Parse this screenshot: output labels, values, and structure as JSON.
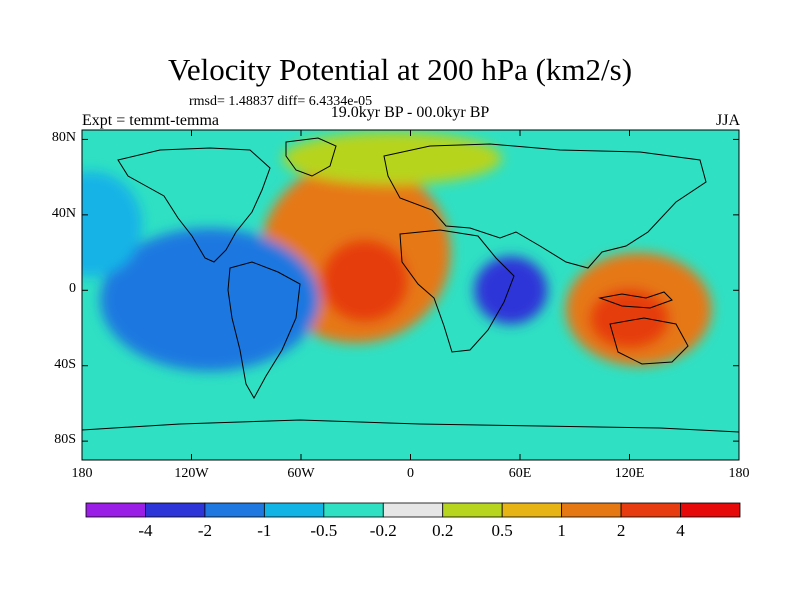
{
  "header": {
    "title": "Velocity Potential at 200 hPa (km2/s)",
    "stats": "rmsd= 1.48837  diff= 6.4334e-05",
    "experiment": "Expt = temmt-temma",
    "period": "19.0kyr BP - 00.0kyr BP",
    "season": "JJA"
  },
  "axes": {
    "lat_ticks": [
      "80N",
      "40N",
      "0",
      "40S",
      "80S"
    ],
    "lon_ticks": [
      "180",
      "120W",
      "60W",
      "0",
      "60E",
      "120E",
      "180"
    ]
  },
  "colorbar": {
    "colors": [
      "#9b1ee6",
      "#2d35d8",
      "#1e78e0",
      "#12b4e6",
      "#2fe0c3",
      "#e6e6e6",
      "#b7d41e",
      "#e6b414",
      "#e67814",
      "#e63c0f",
      "#e60a0a"
    ],
    "labels": [
      "-4",
      "-2",
      "-1",
      "-0.5",
      "-0.2",
      "0.2",
      "0.5",
      "1",
      "2",
      "4"
    ]
  },
  "map_fields": [
    {
      "name": "n-atlantic-positive",
      "lon": -30,
      "lat": 20,
      "rx": 52,
      "ry": 48,
      "value": 1.6
    },
    {
      "name": "n-atlantic-core",
      "lon": -25,
      "lat": 5,
      "rx": 24,
      "ry": 22,
      "value": 2.5
    },
    {
      "name": "arctic-weak-positive",
      "lon": -10,
      "lat": 70,
      "rx": 60,
      "ry": 14,
      "value": 0.4
    },
    {
      "name": "e-pacific-trough",
      "lon": -115,
      "lat": -15,
      "rx": 36,
      "ry": 24,
      "value": -2.6
    },
    {
      "name": "e-pacific-outer",
      "lon": -110,
      "lat": -5,
      "rx": 60,
      "ry": 38,
      "value": -1.1
    },
    {
      "name": "indian-ocean-trough",
      "lon": 55,
      "lat": 0,
      "rx": 20,
      "ry": 18,
      "value": -2.3
    },
    {
      "name": "w-pacific-positive",
      "lon": 125,
      "lat": -10,
      "rx": 40,
      "ry": 30,
      "value": 1.7
    },
    {
      "name": "w-pacific-core",
      "lon": 120,
      "lat": -15,
      "rx": 22,
      "ry": 16,
      "value": 3.2
    },
    {
      "name": "n-pacific-weak",
      "lon": -175,
      "lat": 35,
      "rx": 28,
      "ry": 28,
      "value": -0.6
    }
  ]
}
